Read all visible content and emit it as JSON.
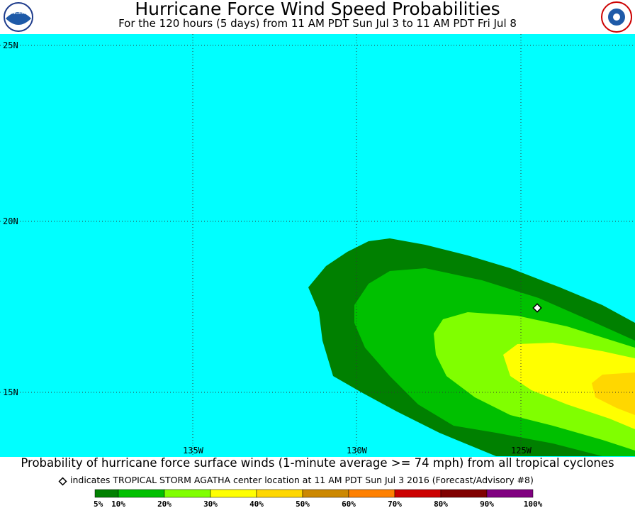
{
  "header": {
    "title": "Hurricane Force Wind Speed Probabilities",
    "subtitle": "For the 120 hours (5 days) from 11 AM PDT Sun Jul 3 to 11 AM PDT Fri Jul 8"
  },
  "map": {
    "lat_labels": [
      "25N",
      "20N",
      "15N"
    ],
    "lon_labels": [
      "135W",
      "130W",
      "125W"
    ]
  },
  "footer": {
    "caption": "Probability of hurricane force surface winds (1-minute average >= 74 mph) from all tropical cyclones",
    "marker_note": "indicates TROPICAL STORM AGATHA center location at 11 AM PDT Sun Jul 3 2016 (Forecast/Advisory #8)"
  },
  "legend": {
    "labels": [
      "5%",
      "10%",
      "20%",
      "30%",
      "40%",
      "50%",
      "60%",
      "70%",
      "80%",
      "90%",
      "100%"
    ],
    "colors": [
      "#008000",
      "#00c000",
      "#80ff00",
      "#ffff00",
      "#ffd700",
      "#cc8800",
      "#ff8000",
      "#cc0000",
      "#800000",
      "#800080"
    ]
  }
}
